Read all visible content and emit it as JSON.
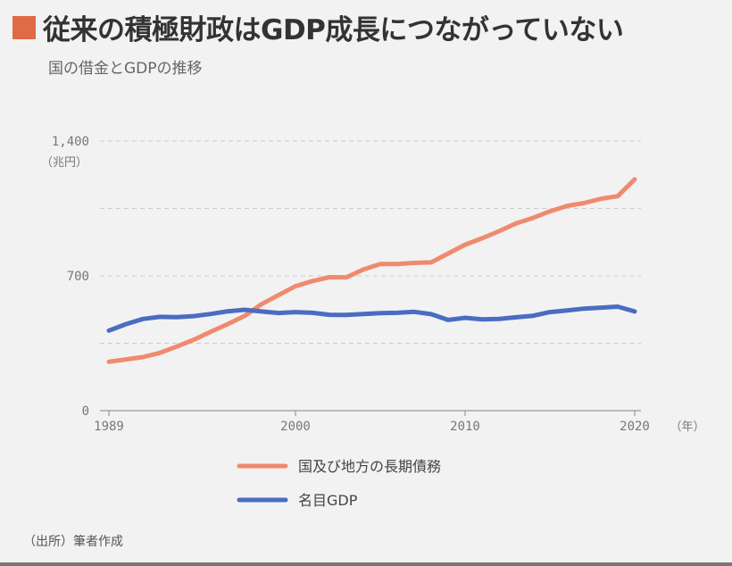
{
  "header": {
    "title": "従来の積極財政はGDP成長につながっていない",
    "subtitle": "国の借金とGDPの推移"
  },
  "source": "（出所）筆者作成",
  "colors": {
    "accent": "#e06a45",
    "debt": "#f08a6e",
    "gdp": "#4a6cc2",
    "bottom_rule": "#777777"
  },
  "chart_data": {
    "type": "line",
    "y_unit_label": "（兆円）",
    "x_unit_label": "（年）",
    "xlim": [
      1989,
      2020
    ],
    "ylim": [
      0,
      1400
    ],
    "y_ticks": [
      {
        "value": 0,
        "label": "0"
      },
      {
        "value": 700,
        "label": "700"
      },
      {
        "value": 1400,
        "label": "1,400"
      }
    ],
    "y_gridlines": [
      350,
      700,
      1050,
      1400
    ],
    "x_ticks": [
      {
        "value": 1989,
        "label": "1989"
      },
      {
        "value": 2000,
        "label": "2000"
      },
      {
        "value": 2010,
        "label": "2010"
      },
      {
        "value": 2020,
        "label": "2020"
      }
    ],
    "legend_position": "bottom",
    "series": [
      {
        "name": "国及び地方の長期債務",
        "color": "#f08a6e",
        "x": [
          1989,
          1990,
          1991,
          1992,
          1993,
          1994,
          1995,
          1996,
          1997,
          1998,
          1999,
          2000,
          2001,
          2002,
          2003,
          2004,
          2005,
          2006,
          2007,
          2008,
          2009,
          2010,
          2011,
          2012,
          2013,
          2014,
          2015,
          2016,
          2017,
          2018,
          2019,
          2020
        ],
        "y": [
          254,
          266,
          278,
          300,
          333,
          368,
          410,
          449,
          492,
          553,
          600,
          646,
          673,
          693,
          692,
          733,
          761,
          761,
          767,
          770,
          816,
          862,
          895,
          932,
          972,
          1001,
          1035,
          1063,
          1078,
          1100,
          1114,
          1201
        ]
      },
      {
        "name": "名目GDP",
        "color": "#4a6cc2",
        "x": [
          1989,
          1990,
          1991,
          1992,
          1993,
          1994,
          1995,
          1996,
          1997,
          1998,
          1999,
          2000,
          2001,
          2002,
          2003,
          2004,
          2005,
          2006,
          2007,
          2008,
          2009,
          2010,
          2011,
          2012,
          2013,
          2014,
          2015,
          2016,
          2017,
          2018,
          2019,
          2020
        ],
        "y": [
          416,
          449,
          476,
          487,
          486,
          491,
          502,
          516,
          524,
          515,
          507,
          512,
          508,
          498,
          497,
          502,
          506,
          508,
          513,
          501,
          471,
          482,
          474,
          476,
          485,
          493,
          512,
          520,
          530,
          535,
          540,
          515
        ]
      }
    ]
  }
}
